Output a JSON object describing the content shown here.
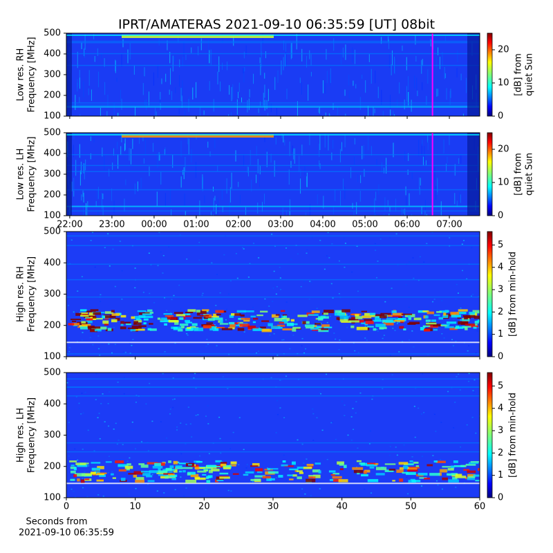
{
  "chart_data": [
    {
      "type": "heatmap",
      "title": "IPRT/AMATERAS 2021-09-10 06:35:59 [UT]   08bit",
      "ylabel": [
        "Low res. RH",
        "Frequency [MHz]"
      ],
      "ylim": [
        100,
        500
      ],
      "yticks": [
        100,
        200,
        300,
        400,
        500
      ],
      "xlim": [
        21.92,
        31.72
      ],
      "marker_x": 30.6,
      "marker_color": "#ff00ff",
      "colorbar": {
        "label": [
          "[dB] from",
          "quiet Sun"
        ],
        "lim": [
          0,
          25
        ],
        "ticks": [
          0,
          10,
          20
        ]
      }
    },
    {
      "type": "heatmap",
      "ylabel": [
        "Low res. LH",
        "Frequency [MHz]"
      ],
      "ylim": [
        100,
        500
      ],
      "yticks": [
        100,
        200,
        300,
        400,
        500
      ],
      "xlim": [
        21.92,
        31.72
      ],
      "marker_x": 30.6,
      "marker_color": "#ff00ff",
      "xticks": [
        {
          "value": 22,
          "label": "22:00"
        },
        {
          "value": 23,
          "label": "23:00"
        },
        {
          "value": 24,
          "label": "00:00"
        },
        {
          "value": 25,
          "label": "01:00"
        },
        {
          "value": 26,
          "label": "02:00"
        },
        {
          "value": 27,
          "label": "03:00"
        },
        {
          "value": 28,
          "label": "04:00"
        },
        {
          "value": 29,
          "label": "05:00"
        },
        {
          "value": 30,
          "label": "06:00"
        },
        {
          "value": 31,
          "label": "07:00"
        }
      ],
      "colorbar": {
        "label": [
          "[dB] from",
          "quiet Sun"
        ],
        "lim": [
          0,
          25
        ],
        "ticks": [
          0,
          10,
          20
        ]
      }
    },
    {
      "type": "heatmap",
      "ylabel": [
        "High res. RH",
        "Frequency [MHz]"
      ],
      "ylim": [
        100,
        500
      ],
      "yticks": [
        100,
        200,
        300,
        400,
        500
      ],
      "xlim": [
        0,
        60
      ],
      "colorbar": {
        "label": [
          "[dB] from min-hold"
        ],
        "lim": [
          0,
          5.6
        ],
        "ticks": [
          0,
          1,
          2,
          3,
          4,
          5
        ]
      }
    },
    {
      "type": "heatmap",
      "ylabel": [
        "High res. LH",
        "Frequency [MHz]"
      ],
      "ylim": [
        100,
        500
      ],
      "yticks": [
        100,
        200,
        300,
        400,
        500
      ],
      "xlim": [
        0,
        60
      ],
      "xticks": [
        0,
        10,
        20,
        30,
        40,
        50,
        60
      ],
      "xlabel": [
        "Seconds from",
        "2021-09-10 06:35:59"
      ],
      "colorbar": {
        "label": [
          "[dB] from min-hold"
        ],
        "lim": [
          0,
          5.6
        ],
        "ticks": [
          0,
          1,
          2,
          3,
          4,
          5
        ]
      }
    }
  ]
}
